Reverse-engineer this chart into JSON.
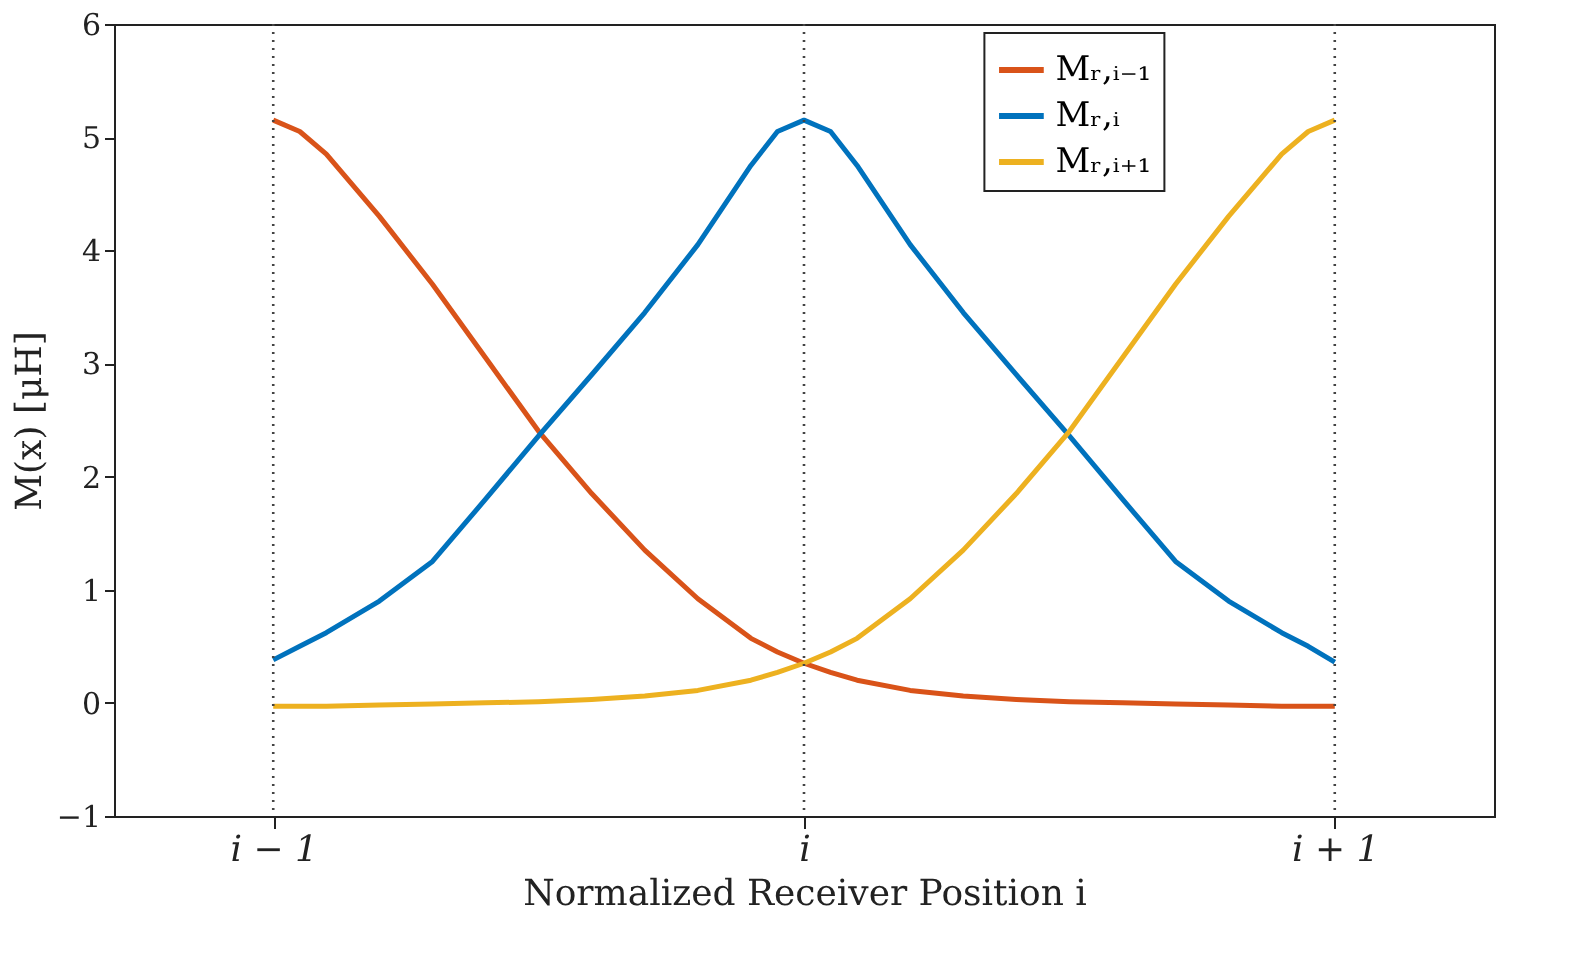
{
  "chart_data": {
    "type": "line",
    "xlabel": "Normalized Receiver Position i",
    "ylabel": "M(x) [μH]",
    "x": [
      -1,
      -0.95,
      -0.9,
      -0.8,
      -0.7,
      -0.6,
      -0.5,
      -0.4,
      -0.3,
      -0.2,
      -0.1,
      -0.05,
      0,
      0.05,
      0.1,
      0.2,
      0.3,
      0.4,
      0.5,
      0.6,
      0.7,
      0.8,
      0.9,
      0.95,
      1
    ],
    "series": [
      {
        "name": "Mᵣ,ᵢ₋₁",
        "color": "#d95319",
        "values": [
          5.15,
          5.05,
          4.85,
          4.3,
          3.7,
          3.05,
          2.4,
          1.85,
          1.35,
          0.92,
          0.57,
          0.45,
          0.35,
          0.27,
          0.2,
          0.11,
          0.06,
          0.03,
          0.01,
          0.0,
          -0.01,
          -0.02,
          -0.03,
          -0.03,
          -0.03
        ]
      },
      {
        "name": "Mᵣ,ᵢ",
        "color": "#0072bd",
        "values": [
          0.38,
          0.5,
          0.62,
          0.9,
          1.25,
          1.8,
          2.36,
          2.9,
          3.45,
          4.05,
          4.75,
          5.05,
          5.15,
          5.05,
          4.75,
          4.05,
          3.45,
          2.9,
          2.36,
          1.8,
          1.25,
          0.9,
          0.62,
          0.5,
          0.36
        ]
      },
      {
        "name": "Mᵣ,ᵢ₊₁",
        "color": "#edb120",
        "values": [
          -0.03,
          -0.03,
          -0.03,
          -0.02,
          -0.01,
          0.0,
          0.01,
          0.03,
          0.06,
          0.11,
          0.2,
          0.27,
          0.35,
          0.45,
          0.57,
          0.92,
          1.35,
          1.85,
          2.4,
          3.05,
          3.7,
          4.3,
          4.85,
          5.05,
          5.15
        ]
      }
    ],
    "xlim": [
      -1.3,
      1.3
    ],
    "xticks": [
      {
        "value": -1,
        "label": "i − 1"
      },
      {
        "value": 0,
        "label": "i"
      },
      {
        "value": 1,
        "label": "i + 1"
      }
    ],
    "ylim": [
      -1,
      6
    ],
    "yticks": [
      -1,
      0,
      1,
      2,
      3,
      4,
      5,
      6
    ],
    "ref_lines": [
      {
        "axis": "x",
        "value": -1,
        "label": null,
        "color": "#444444",
        "line_style": "dotted"
      },
      {
        "axis": "x",
        "value": 0,
        "label": null,
        "color": "#444444",
        "line_style": "dotted"
      },
      {
        "axis": "x",
        "value": 1,
        "label": null,
        "color": "#444444",
        "line_style": "dotted"
      }
    ],
    "grid": false,
    "legend": "top right",
    "marker": "none",
    "line_style": "solid"
  }
}
